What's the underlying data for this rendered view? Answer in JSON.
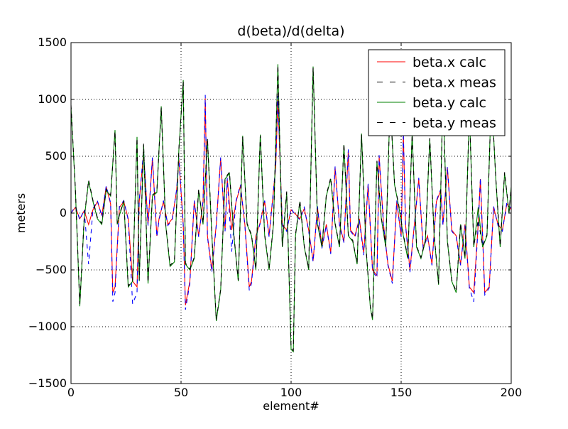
{
  "chart_data": {
    "type": "line",
    "title": "d(beta)/d(delta)",
    "xlabel": "element#",
    "ylabel": "meters",
    "xlim": [
      0,
      200
    ],
    "ylim": [
      -1500,
      1500
    ],
    "xticks": [
      0,
      50,
      100,
      150,
      200
    ],
    "yticks": [
      -1500,
      -1000,
      -500,
      0,
      500,
      1000,
      1500
    ],
    "xtick_labels": [
      "0",
      "50",
      "100",
      "150",
      "200"
    ],
    "ytick_labels": [
      "−1500",
      "−1000",
      "−500",
      "0",
      "500",
      "1000",
      "1500"
    ],
    "grid": true,
    "legend_position": "top-right",
    "series": [
      {
        "name": "beta.x calc",
        "color": "#ff0000",
        "dash": "solid",
        "x": [
          0,
          2,
          4,
          6,
          8,
          10,
          12,
          14,
          16,
          18,
          19,
          20,
          22,
          24,
          26,
          28,
          30,
          31,
          33,
          35,
          37,
          39,
          40,
          42,
          44,
          46,
          48,
          49,
          51,
          52,
          54,
          56,
          58,
          60,
          61,
          62,
          64,
          66,
          68,
          70,
          71,
          73,
          75,
          77,
          79,
          81,
          82,
          84,
          86,
          88,
          90,
          93,
          94,
          96,
          98,
          100,
          102,
          104,
          106,
          108,
          110,
          112,
          114,
          116,
          118,
          120,
          122,
          124,
          126,
          127,
          129,
          131,
          133,
          135,
          137,
          139,
          140,
          142,
          144,
          146,
          148,
          150,
          151,
          152,
          154,
          156,
          158,
          160,
          162,
          164,
          166,
          168,
          169,
          171,
          173,
          175,
          177,
          179,
          181,
          183,
          185,
          186,
          188,
          190,
          192,
          194,
          196,
          198,
          200
        ],
        "y": [
          0,
          50,
          -50,
          20,
          -100,
          30,
          100,
          -20,
          230,
          80,
          -700,
          -650,
          50,
          100,
          -50,
          -600,
          -650,
          100,
          530,
          -100,
          480,
          -200,
          -50,
          100,
          -100,
          -50,
          200,
          480,
          -100,
          -810,
          -600,
          100,
          -200,
          100,
          1010,
          -200,
          -500,
          -100,
          480,
          -150,
          300,
          -150,
          100,
          240,
          -100,
          -650,
          -600,
          -200,
          -80,
          100,
          -200,
          400,
          1000,
          -100,
          -150,
          30,
          -10,
          -50,
          40,
          -150,
          -420,
          50,
          -300,
          -100,
          -350,
          400,
          -100,
          -250,
          550,
          -150,
          -200,
          -50,
          -350,
          250,
          -500,
          -550,
          500,
          -100,
          -450,
          -600,
          100,
          -200,
          700,
          -100,
          -500,
          -100,
          300,
          -300,
          -200,
          -450,
          100,
          200,
          -100,
          400,
          -150,
          -200,
          -450,
          -100,
          -650,
          -700,
          -100,
          300,
          -700,
          -650,
          50,
          -100,
          -150,
          80,
          30
        ]
      },
      {
        "name": "beta.x meas",
        "color": "#0000ff",
        "dash": "dashed",
        "x": [
          0,
          2,
          4,
          6,
          8,
          10,
          12,
          14,
          16,
          18,
          19,
          20,
          22,
          24,
          26,
          28,
          30,
          31,
          33,
          35,
          37,
          39,
          40,
          42,
          44,
          46,
          48,
          49,
          51,
          52,
          54,
          56,
          58,
          60,
          61,
          62,
          64,
          66,
          68,
          70,
          71,
          73,
          75,
          77,
          79,
          81,
          82,
          84,
          86,
          88,
          90,
          93,
          94,
          96,
          98,
          100,
          102,
          104,
          106,
          108,
          110,
          112,
          114,
          116,
          118,
          120,
          122,
          124,
          126,
          127,
          129,
          131,
          133,
          135,
          137,
          139,
          140,
          142,
          144,
          146,
          148,
          150,
          151,
          152,
          154,
          156,
          158,
          160,
          162,
          164,
          166,
          168,
          169,
          171,
          173,
          175,
          177,
          179,
          181,
          183,
          185,
          186,
          188,
          190,
          192,
          194,
          196,
          198,
          200
        ],
        "y": [
          0,
          60,
          -60,
          30,
          -450,
          40,
          110,
          -30,
          240,
          90,
          -780,
          -700,
          60,
          110,
          -60,
          -800,
          -700,
          110,
          550,
          -110,
          490,
          -210,
          -60,
          110,
          -110,
          -60,
          210,
          490,
          -110,
          -850,
          -620,
          110,
          -210,
          110,
          1040,
          -210,
          -520,
          -110,
          490,
          -160,
          310,
          -340,
          110,
          250,
          -110,
          -680,
          -620,
          -210,
          -90,
          110,
          -210,
          410,
          1030,
          -110,
          -160,
          40,
          -20,
          -60,
          50,
          -160,
          -430,
          60,
          -310,
          -110,
          -360,
          410,
          -110,
          -260,
          560,
          -160,
          -210,
          -60,
          -370,
          260,
          -510,
          -570,
          510,
          -110,
          -460,
          -620,
          110,
          -210,
          710,
          -110,
          -520,
          -110,
          310,
          -310,
          -210,
          -460,
          110,
          210,
          -110,
          410,
          -160,
          -210,
          -460,
          -110,
          -660,
          -780,
          -110,
          310,
          -720,
          -660,
          60,
          -110,
          -160,
          90,
          40
        ]
      },
      {
        "name": "beta.y calc",
        "color": "#008000",
        "dash": "solid",
        "x": [
          0,
          2,
          4,
          6,
          8,
          10,
          12,
          14,
          16,
          18,
          20,
          21,
          22,
          24,
          26,
          28,
          30,
          31,
          33,
          35,
          37,
          39,
          41,
          43,
          45,
          47,
          49,
          51,
          52,
          54,
          56,
          58,
          60,
          62,
          64,
          66,
          68,
          70,
          72,
          74,
          76,
          78,
          80,
          82,
          84,
          86,
          88,
          90,
          92,
          94,
          96,
          98,
          100,
          101,
          102,
          104,
          106,
          108,
          110,
          112,
          114,
          116,
          118,
          120,
          122,
          124,
          126,
          128,
          130,
          132,
          134,
          136,
          137,
          139,
          141,
          143,
          145,
          147,
          149,
          151,
          153,
          155,
          157,
          159,
          161,
          163,
          165,
          167,
          169,
          171,
          173,
          175,
          177,
          179,
          181,
          183,
          185,
          187,
          189,
          191,
          193,
          195,
          197,
          199,
          200
        ],
        "y": [
          930,
          200,
          -820,
          -50,
          280,
          100,
          -50,
          -100,
          200,
          150,
          730,
          -100,
          -20,
          100,
          -650,
          -600,
          670,
          -600,
          600,
          -620,
          150,
          180,
          940,
          -100,
          -470,
          -430,
          550,
          1170,
          -450,
          -500,
          -400,
          200,
          -100,
          650,
          -200,
          -950,
          -680,
          300,
          350,
          -200,
          -600,
          680,
          -100,
          -200,
          -500,
          690,
          -200,
          -500,
          -100,
          1310,
          -300,
          180,
          -1200,
          -1220,
          -200,
          100,
          -300,
          -500,
          1290,
          -100,
          -300,
          150,
          300,
          -100,
          -300,
          600,
          -200,
          -250,
          -450,
          700,
          -300,
          -830,
          -940,
          450,
          -50,
          -300,
          980,
          250,
          50,
          -200,
          -400,
          700,
          -300,
          -400,
          -250,
          650,
          -200,
          -630,
          1050,
          -250,
          -600,
          -700,
          -100,
          -400,
          900,
          -300,
          50,
          -300,
          -200,
          1060,
          300,
          -300,
          350,
          0,
          230
        ]
      },
      {
        "name": "beta.y meas",
        "color": "#000000",
        "dash": "dashed",
        "x": [
          0,
          2,
          4,
          6,
          8,
          10,
          12,
          14,
          16,
          18,
          20,
          21,
          22,
          24,
          26,
          28,
          30,
          31,
          33,
          35,
          37,
          39,
          41,
          43,
          45,
          47,
          49,
          51,
          52,
          54,
          56,
          58,
          60,
          62,
          64,
          66,
          68,
          70,
          72,
          74,
          76,
          78,
          80,
          82,
          84,
          86,
          88,
          90,
          92,
          94,
          96,
          98,
          100,
          101,
          102,
          104,
          106,
          108,
          110,
          112,
          114,
          116,
          118,
          120,
          122,
          124,
          126,
          128,
          130,
          132,
          134,
          136,
          137,
          139,
          141,
          143,
          145,
          147,
          149,
          151,
          153,
          155,
          157,
          159,
          161,
          163,
          165,
          167,
          169,
          171,
          173,
          175,
          177,
          179,
          181,
          183,
          185,
          187,
          189,
          191,
          193,
          195,
          197,
          199,
          200
        ],
        "y": [
          950,
          210,
          -800,
          -40,
          290,
          110,
          -40,
          -90,
          210,
          160,
          720,
          -90,
          -10,
          110,
          -640,
          -590,
          660,
          -590,
          610,
          -610,
          160,
          190,
          930,
          -90,
          -460,
          -420,
          560,
          1160,
          -440,
          -490,
          -390,
          210,
          -90,
          660,
          -190,
          -940,
          -670,
          310,
          360,
          -190,
          -590,
          670,
          -90,
          -190,
          -490,
          680,
          -190,
          -490,
          -90,
          1300,
          -290,
          190,
          -1190,
          -1210,
          -190,
          110,
          -290,
          -490,
          1280,
          -90,
          -290,
          160,
          310,
          -90,
          -290,
          610,
          -190,
          -240,
          -440,
          690,
          -290,
          -820,
          -930,
          460,
          -40,
          -290,
          970,
          260,
          60,
          -190,
          -390,
          690,
          -290,
          -390,
          -240,
          660,
          -190,
          -620,
          1040,
          -240,
          -590,
          -690,
          -90,
          -390,
          890,
          -290,
          -60,
          -290,
          -190,
          1050,
          310,
          -290,
          360,
          10,
          220
        ]
      }
    ]
  }
}
